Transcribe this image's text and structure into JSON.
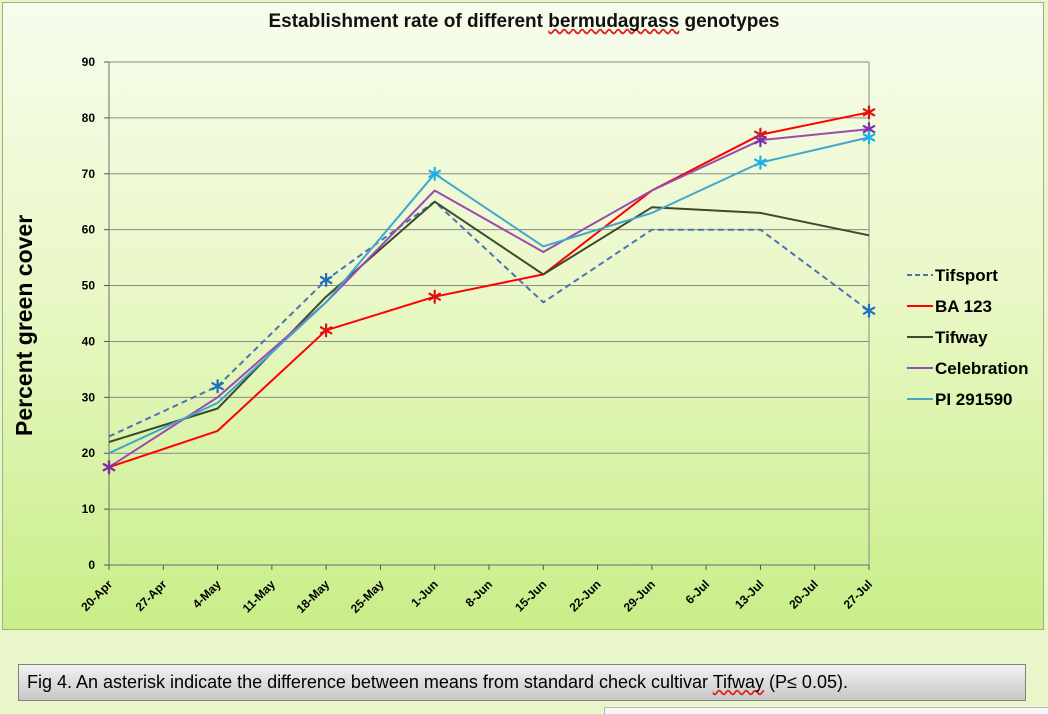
{
  "chart_data": {
    "type": "line",
    "title": "Establishment rate of different bermudagrass genotypes",
    "ylabel": "Percent green cover",
    "xlabel": "",
    "ylim": [
      0,
      90
    ],
    "yticks": [
      "0",
      "10",
      "20",
      "30",
      "40",
      "50",
      "60",
      "70",
      "80",
      "90"
    ],
    "categories": [
      "20-Apr",
      "27-Apr",
      "4-May",
      "11-May",
      "18-May",
      "25-May",
      "1-Jun",
      "8-Jun",
      "15-Jun",
      "22-Jun",
      "29-Jun",
      "6-Jul",
      "13-Jul",
      "20-Jul",
      "27-Jul"
    ],
    "grid": true,
    "legend": "right",
    "series": [
      {
        "name": "Tifsport",
        "color": "#4a74b4",
        "dash": "dashed",
        "asterisk_color": "#1f6fbf",
        "points": [
          [
            "20-Apr",
            23
          ],
          [
            "4-May",
            32
          ],
          [
            "18-May",
            51
          ],
          [
            "1-Jun",
            65
          ],
          [
            "15-Jun",
            47
          ],
          [
            "29-Jun",
            60
          ],
          [
            "13-Jul",
            60
          ],
          [
            "27-Jul",
            45.5
          ]
        ],
        "asterisks": [
          "4-May",
          "18-May",
          "27-Jul"
        ]
      },
      {
        "name": "BA 123",
        "color": "#ff0000",
        "dash": "solid",
        "asterisk_color": "#e01010",
        "points": [
          [
            "20-Apr",
            17.5
          ],
          [
            "4-May",
            24
          ],
          [
            "18-May",
            42
          ],
          [
            "1-Jun",
            48
          ],
          [
            "15-Jun",
            52
          ],
          [
            "29-Jun",
            67
          ],
          [
            "13-Jul",
            77
          ],
          [
            "27-Jul",
            81
          ]
        ],
        "asterisks": [
          "20-Apr",
          "18-May",
          "1-Jun",
          "13-Jul",
          "27-Jul"
        ]
      },
      {
        "name": "Tifway",
        "color": "#3b4a2c",
        "dash": "solid",
        "points": [
          [
            "20-Apr",
            22
          ],
          [
            "4-May",
            28
          ],
          [
            "18-May",
            48
          ],
          [
            "1-Jun",
            65
          ],
          [
            "15-Jun",
            52
          ],
          [
            "29-Jun",
            64
          ],
          [
            "13-Jul",
            63
          ],
          [
            "27-Jul",
            59
          ]
        ],
        "asterisks": []
      },
      {
        "name": "Celebration",
        "color": "#9b4bb0",
        "dash": "solid",
        "asterisk_color": "#7b2fa8",
        "points": [
          [
            "20-Apr",
            17.5
          ],
          [
            "4-May",
            30
          ],
          [
            "18-May",
            47
          ],
          [
            "1-Jun",
            67
          ],
          [
            "15-Jun",
            56
          ],
          [
            "29-Jun",
            67
          ],
          [
            "13-Jul",
            76
          ],
          [
            "27-Jul",
            78
          ]
        ],
        "asterisks": [
          "20-Apr",
          "13-Jul",
          "27-Jul"
        ]
      },
      {
        "name": "PI 291590",
        "color": "#42a6cc",
        "dash": "solid",
        "asterisk_color": "#1ab0e6",
        "points": [
          [
            "20-Apr",
            20
          ],
          [
            "4-May",
            29
          ],
          [
            "18-May",
            47
          ],
          [
            "1-Jun",
            70
          ],
          [
            "15-Jun",
            57
          ],
          [
            "29-Jun",
            63
          ],
          [
            "13-Jul",
            72
          ],
          [
            "27-Jul",
            76.5
          ]
        ],
        "asterisks": [
          "1-Jun",
          "13-Jul",
          "27-Jul"
        ]
      }
    ]
  },
  "caption": {
    "before": "Fig 4. An asterisk indicate the difference  between means from standard check  cultivar ",
    "underlined": "Tifway",
    "after": " (P≤ 0.05)."
  }
}
